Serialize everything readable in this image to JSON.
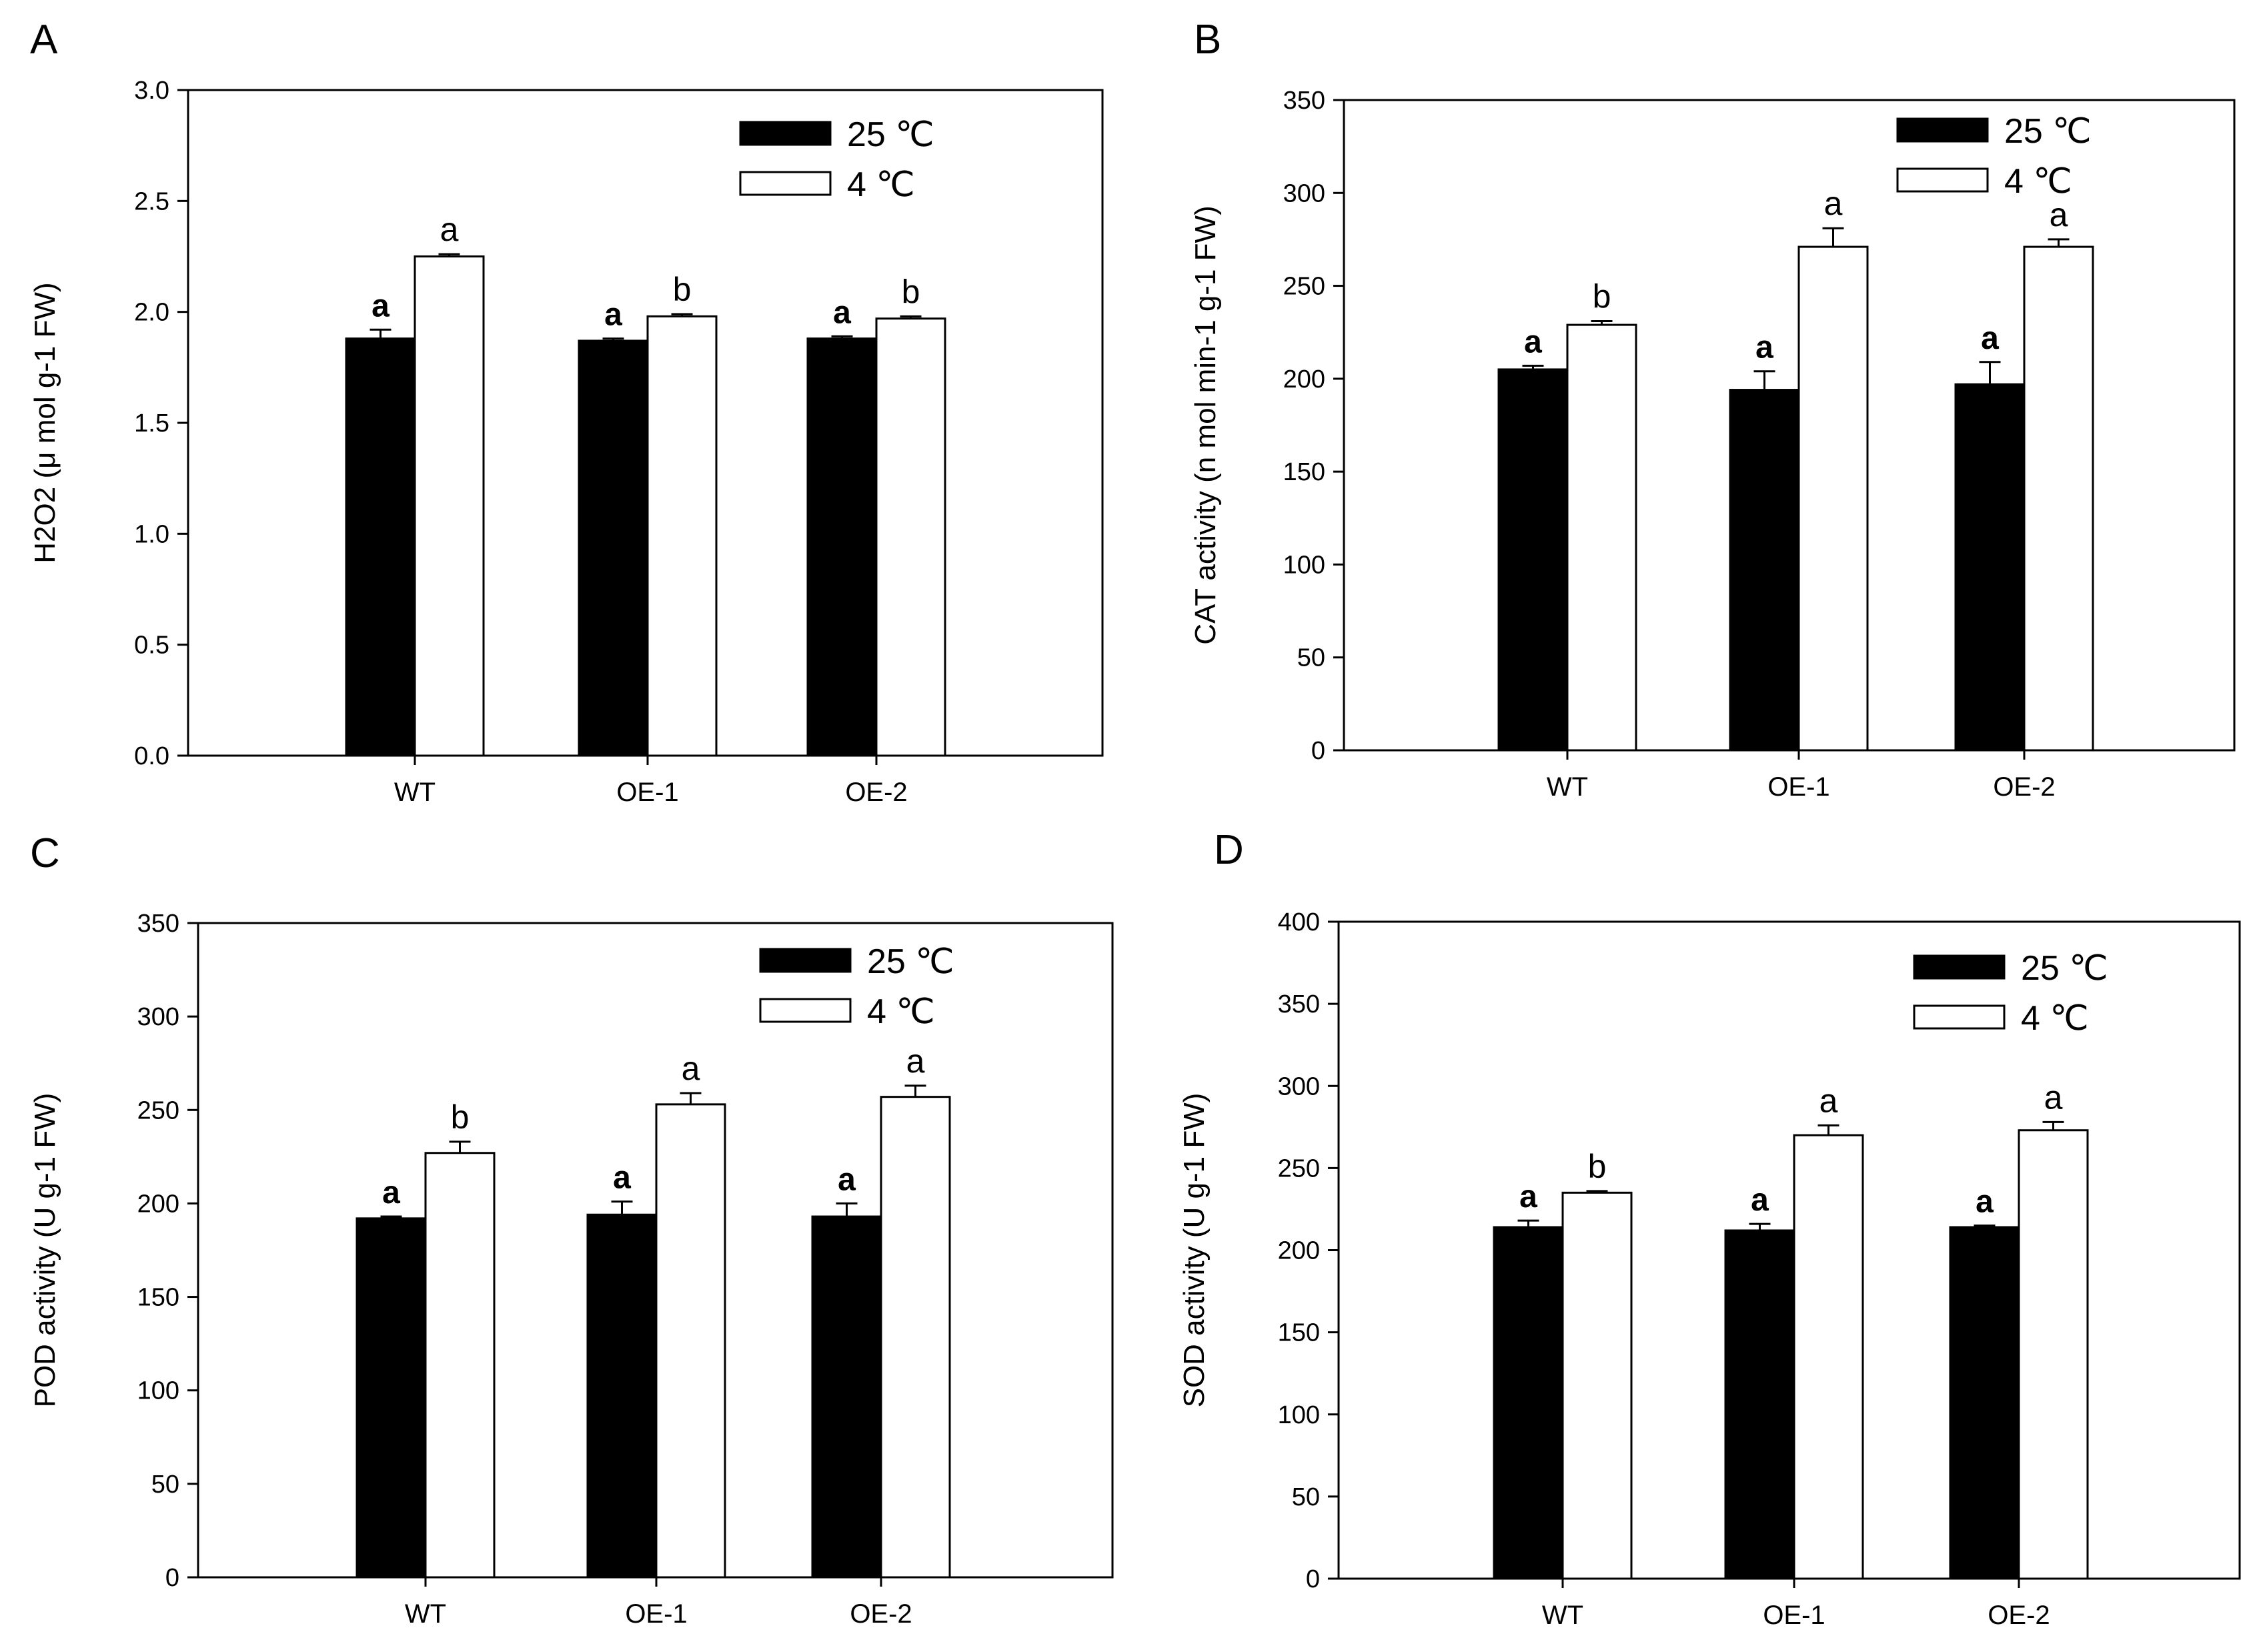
{
  "chart_data": [
    {
      "type": "bar",
      "panel_label": "A",
      "ylabel": "H2O2 (μ mol g-1 FW)",
      "ylim": [
        0,
        3.0
      ],
      "yticks": [
        "0.0",
        "0.5",
        "1.0",
        "1.5",
        "2.0",
        "2.5",
        "3.0"
      ],
      "categories": [
        "WT",
        "OE-1",
        "OE-2"
      ],
      "series": [
        {
          "name": "25 ℃",
          "values": [
            1.88,
            1.87,
            1.88
          ],
          "errors": [
            0.04,
            0.01,
            0.01
          ],
          "labels": [
            "a",
            "a",
            "a"
          ]
        },
        {
          "name": "4 ℃",
          "values": [
            2.25,
            1.98,
            1.97
          ],
          "errors": [
            0.01,
            0.01,
            0.01
          ],
          "labels": [
            "a",
            "b",
            "b"
          ]
        }
      ]
    },
    {
      "type": "bar",
      "panel_label": "B",
      "ylabel": "CAT activity (n mol min-1 g-1 FW)",
      "ylim": [
        0,
        350
      ],
      "yticks": [
        "0",
        "50",
        "100",
        "150",
        "200",
        "250",
        "300",
        "350"
      ],
      "categories": [
        "WT",
        "OE-1",
        "OE-2"
      ],
      "series": [
        {
          "name": "25 ℃",
          "values": [
            205,
            194,
            197
          ],
          "errors": [
            2,
            10,
            12
          ],
          "labels": [
            "a",
            "a",
            "a"
          ]
        },
        {
          "name": "4 ℃",
          "values": [
            229,
            271,
            271
          ],
          "errors": [
            2,
            10,
            4
          ],
          "labels": [
            "b",
            "a",
            "a"
          ]
        }
      ]
    },
    {
      "type": "bar",
      "panel_label": "C",
      "ylabel": "POD activity (U g-1 FW)",
      "ylim": [
        0,
        350
      ],
      "yticks": [
        "0",
        "50",
        "100",
        "150",
        "200",
        "250",
        "300",
        "350"
      ],
      "categories": [
        "WT",
        "OE-1",
        "OE-2"
      ],
      "series": [
        {
          "name": "25 ℃",
          "values": [
            192,
            194,
            193
          ],
          "errors": [
            1,
            7,
            7
          ],
          "labels": [
            "a",
            "a",
            "a"
          ]
        },
        {
          "name": "4 ℃",
          "values": [
            227,
            253,
            257
          ],
          "errors": [
            6,
            6,
            6
          ],
          "labels": [
            "b",
            "a",
            "a"
          ]
        }
      ]
    },
    {
      "type": "bar",
      "panel_label": "D",
      "ylabel": "SOD activity (U g-1 FW)",
      "ylim": [
        0,
        400
      ],
      "yticks": [
        "0",
        "50",
        "100",
        "150",
        "200",
        "250",
        "300",
        "350",
        "400"
      ],
      "categories": [
        "WT",
        "OE-1",
        "OE-2"
      ],
      "series": [
        {
          "name": "25 ℃",
          "values": [
            214,
            212,
            214
          ],
          "errors": [
            4,
            4,
            1
          ],
          "labels": [
            "a",
            "a",
            "a"
          ]
        },
        {
          "name": "4 ℃",
          "values": [
            235,
            270,
            273
          ],
          "errors": [
            1,
            6,
            5
          ],
          "labels": [
            "b",
            "a",
            "a"
          ]
        }
      ]
    }
  ]
}
